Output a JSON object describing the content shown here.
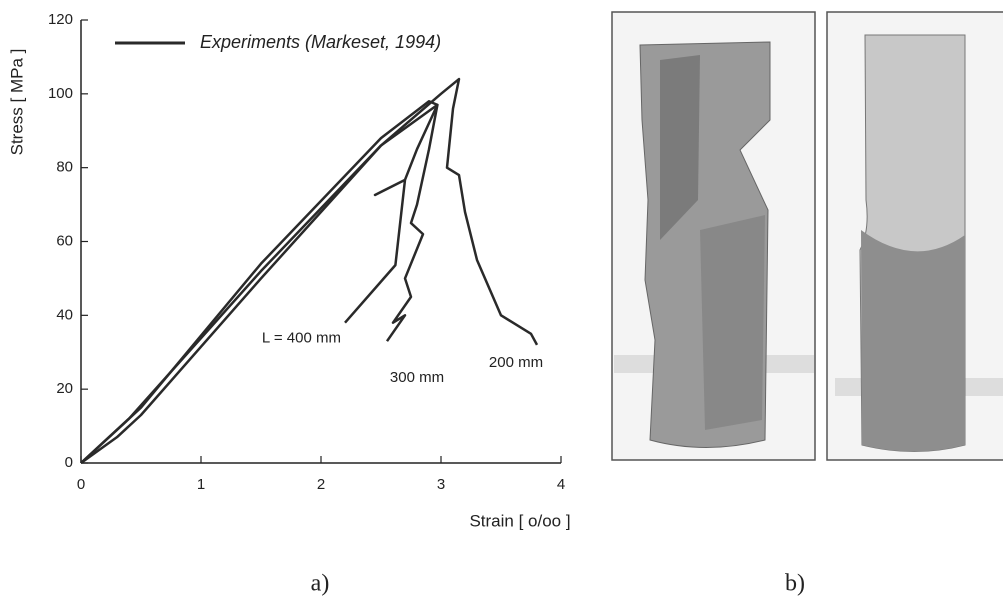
{
  "chart_data": {
    "type": "line",
    "xlabel": "Strain [ o/oo ]",
    "ylabel": "Stress [ MPa ]",
    "legend_label": "Experiments (Markeset, 1994)",
    "color": "#2a2a2a",
    "xlim": [
      0,
      4
    ],
    "ylim": [
      0,
      120
    ],
    "xticks": [
      0,
      1,
      2,
      3,
      4
    ],
    "yticks": [
      0,
      20,
      40,
      60,
      80,
      100,
      120
    ],
    "series": [
      {
        "name": "L = 400 mm",
        "x": [
          0,
          0.3,
          0.5,
          1.5,
          2.5,
          2.9,
          2.97,
          2.8,
          2.7,
          2.45,
          2.7,
          2.62,
          2.2
        ],
        "values": [
          0,
          9,
          15,
          54,
          88,
          98,
          97,
          85,
          76.7,
          72.6,
          76.7,
          53.6,
          38
        ]
      },
      {
        "name": "300 mm",
        "x": [
          0,
          0.2,
          0.4,
          1.5,
          2.5,
          2.97,
          2.9,
          2.8,
          2.75,
          2.85,
          2.7,
          2.75,
          2.6,
          2.7,
          2.55
        ],
        "values": [
          0,
          6,
          12,
          52,
          86,
          97,
          85,
          70,
          65,
          62,
          50,
          45,
          38,
          40,
          33
        ]
      },
      {
        "name": "200 mm",
        "x": [
          0,
          0.3,
          0.5,
          1.5,
          2.5,
          3.0,
          3.15,
          3.1,
          3.05,
          3.15,
          3.2,
          3.3,
          3.5,
          3.6,
          3.75,
          3.8
        ],
        "values": [
          0,
          7,
          13,
          50,
          86,
          100,
          104,
          96,
          80,
          78,
          68,
          55,
          40,
          38,
          35,
          32
        ]
      }
    ]
  },
  "panel_labels": [
    "a)",
    "b)"
  ]
}
